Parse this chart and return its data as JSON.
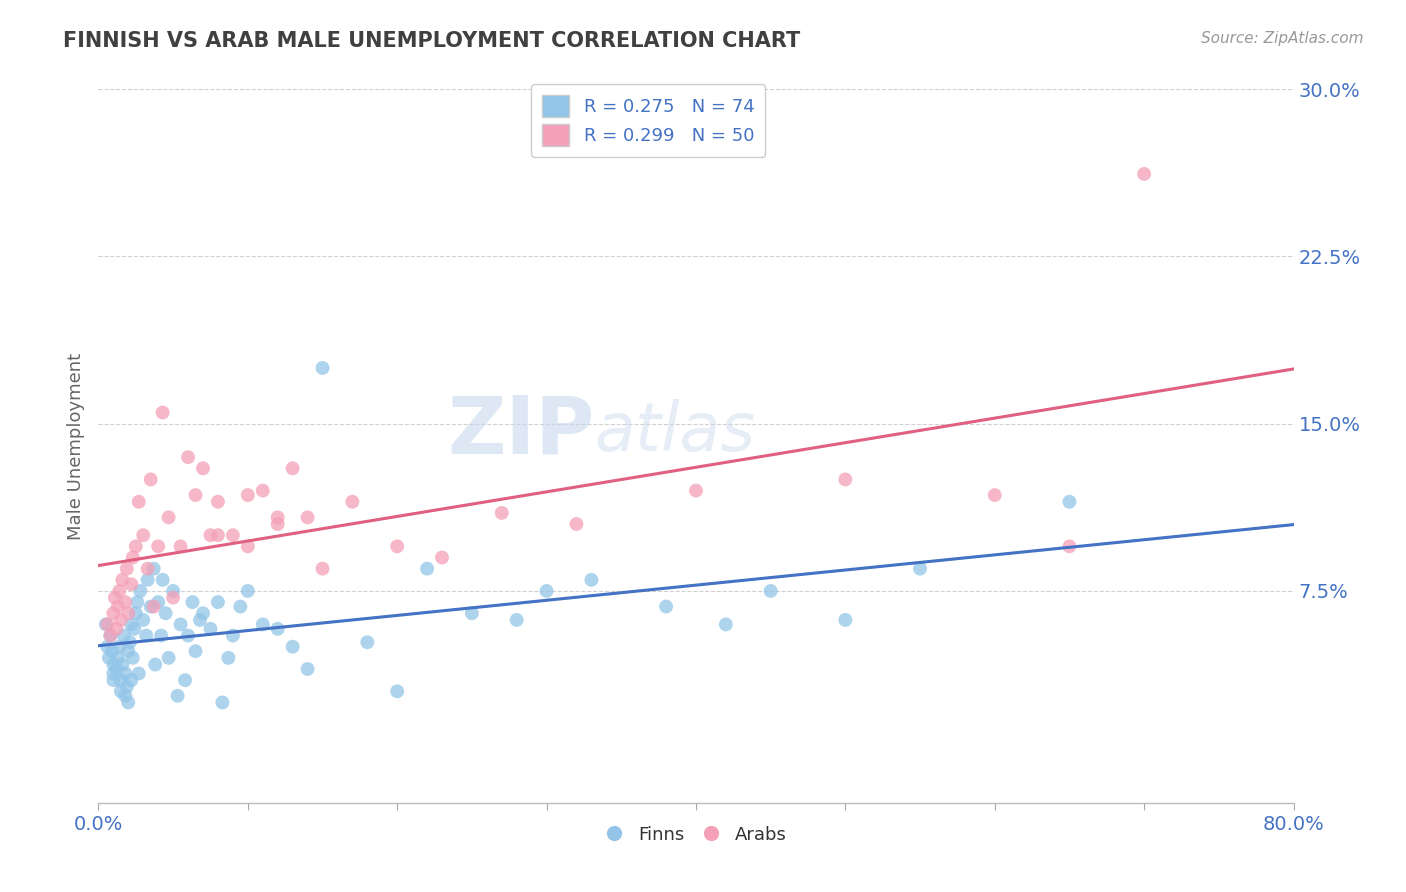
{
  "title": "FINNISH VS ARAB MALE UNEMPLOYMENT CORRELATION CHART",
  "source": "Source: ZipAtlas.com",
  "ylabel": "Male Unemployment",
  "xlabel": "",
  "xlim": [
    0.0,
    0.8
  ],
  "ylim": [
    -0.02,
    0.3
  ],
  "yticks": [
    0.075,
    0.15,
    0.225,
    0.3
  ],
  "ytick_labels": [
    "7.5%",
    "15.0%",
    "22.5%",
    "30.0%"
  ],
  "watermark_zip": "ZIP",
  "watermark_atlas": "atlas",
  "finns_color": "#92c5e8",
  "arabs_color": "#f4a0b8",
  "finns_line_color": "#4472c4",
  "arabs_line_color": "#e06080",
  "title_color": "#404040",
  "tick_color": "#4472c4",
  "grid_color": "#d0d0d0",
  "background_color": "#ffffff",
  "finns_x": [
    0.005,
    0.006,
    0.007,
    0.008,
    0.009,
    0.01,
    0.01,
    0.01,
    0.012,
    0.013,
    0.014,
    0.015,
    0.015,
    0.016,
    0.017,
    0.018,
    0.018,
    0.019,
    0.02,
    0.02,
    0.021,
    0.022,
    0.022,
    0.023,
    0.024,
    0.025,
    0.026,
    0.027,
    0.028,
    0.03,
    0.032,
    0.033,
    0.035,
    0.037,
    0.038,
    0.04,
    0.042,
    0.043,
    0.045,
    0.047,
    0.05,
    0.053,
    0.055,
    0.058,
    0.06,
    0.063,
    0.065,
    0.068,
    0.07,
    0.075,
    0.08,
    0.083,
    0.087,
    0.09,
    0.095,
    0.1,
    0.11,
    0.12,
    0.13,
    0.14,
    0.15,
    0.18,
    0.2,
    0.22,
    0.25,
    0.28,
    0.3,
    0.33,
    0.38,
    0.42,
    0.45,
    0.5,
    0.55,
    0.65
  ],
  "finns_y": [
    0.06,
    0.05,
    0.045,
    0.055,
    0.048,
    0.042,
    0.038,
    0.035,
    0.04,
    0.045,
    0.05,
    0.03,
    0.035,
    0.042,
    0.055,
    0.038,
    0.028,
    0.032,
    0.048,
    0.025,
    0.052,
    0.06,
    0.035,
    0.045,
    0.058,
    0.065,
    0.07,
    0.038,
    0.075,
    0.062,
    0.055,
    0.08,
    0.068,
    0.085,
    0.042,
    0.07,
    0.055,
    0.08,
    0.065,
    0.045,
    0.075,
    0.028,
    0.06,
    0.035,
    0.055,
    0.07,
    0.048,
    0.062,
    0.065,
    0.058,
    0.07,
    0.025,
    0.045,
    0.055,
    0.068,
    0.075,
    0.06,
    0.058,
    0.05,
    0.04,
    0.175,
    0.052,
    0.03,
    0.085,
    0.065,
    0.062,
    0.075,
    0.08,
    0.068,
    0.06,
    0.075,
    0.062,
    0.085,
    0.115
  ],
  "arabs_x": [
    0.006,
    0.008,
    0.01,
    0.011,
    0.012,
    0.013,
    0.014,
    0.015,
    0.016,
    0.018,
    0.019,
    0.02,
    0.022,
    0.023,
    0.025,
    0.027,
    0.03,
    0.033,
    0.035,
    0.037,
    0.04,
    0.043,
    0.047,
    0.05,
    0.055,
    0.06,
    0.065,
    0.07,
    0.075,
    0.08,
    0.09,
    0.1,
    0.11,
    0.12,
    0.13,
    0.14,
    0.15,
    0.17,
    0.2,
    0.23,
    0.27,
    0.32,
    0.4,
    0.5,
    0.6,
    0.65,
    0.7,
    0.1,
    0.12,
    0.08
  ],
  "arabs_y": [
    0.06,
    0.055,
    0.065,
    0.072,
    0.058,
    0.068,
    0.075,
    0.062,
    0.08,
    0.07,
    0.085,
    0.065,
    0.078,
    0.09,
    0.095,
    0.115,
    0.1,
    0.085,
    0.125,
    0.068,
    0.095,
    0.155,
    0.108,
    0.072,
    0.095,
    0.135,
    0.118,
    0.13,
    0.1,
    0.115,
    0.1,
    0.095,
    0.12,
    0.105,
    0.13,
    0.108,
    0.085,
    0.115,
    0.095,
    0.09,
    0.11,
    0.105,
    0.12,
    0.125,
    0.118,
    0.095,
    0.262,
    0.118,
    0.108,
    0.1
  ]
}
